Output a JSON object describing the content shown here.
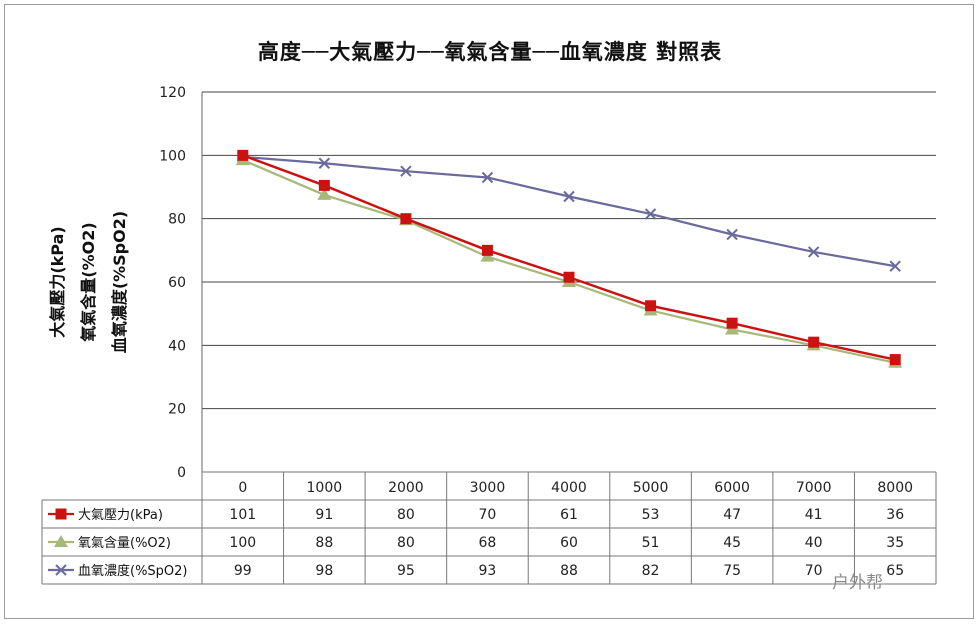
{
  "chart_data": {
    "type": "line",
    "title": "高度──大氣壓力──氧氣含量──血氧濃度 對照表",
    "ylabel_lines": [
      "大氣壓力(kPa)",
      "氧氣含量(%O2)",
      "血氧濃度(%SpO2)"
    ],
    "xlabel": "",
    "ylim": [
      0,
      120
    ],
    "yticks": [
      0,
      20,
      40,
      60,
      80,
      100,
      120
    ],
    "x": [
      0,
      1000,
      2000,
      3000,
      4000,
      5000,
      6000,
      7000,
      8000
    ],
    "x_labels": [
      "0",
      "1000",
      "2000",
      "3000",
      "4000",
      "5000",
      "6000",
      "7000",
      "8000"
    ],
    "grid": true,
    "legend_placement": "table-left",
    "series": [
      {
        "name": "大氣壓力(kPa)",
        "values": [
          101,
          91,
          80,
          70,
          61,
          53,
          47,
          41,
          36
        ],
        "plotted": [
          100,
          90.5,
          80,
          70,
          61.5,
          52.5,
          47,
          41,
          35.5
        ],
        "color": "#cc1111",
        "marker": "square"
      },
      {
        "name": "氧氣含量(%O2)",
        "values": [
          100,
          88,
          80,
          68,
          60,
          51,
          45,
          40,
          35
        ],
        "plotted": [
          98.5,
          87.5,
          79.5,
          68,
          60,
          51,
          45,
          40,
          34.5
        ],
        "color": "#a8b87a",
        "marker": "triangle"
      },
      {
        "name": "血氧濃度(%SpO2)",
        "values": [
          99,
          98,
          95,
          93,
          88,
          82,
          75,
          70,
          65
        ],
        "plotted": [
          99.5,
          97.5,
          95,
          93,
          87,
          81.5,
          75,
          69.5,
          65
        ],
        "color": "#6a6a9c",
        "marker": "x"
      }
    ],
    "table_values": [
      [
        "101",
        "91",
        "80",
        "70",
        "61",
        "53",
        "47",
        "41",
        "36"
      ],
      [
        "100",
        "88",
        "80",
        "68",
        "60",
        "51",
        "45",
        "40",
        "35"
      ],
      [
        "99",
        "98",
        "95",
        "93",
        "88",
        "82",
        "75",
        "70",
        "65"
      ]
    ]
  },
  "watermark": "户外帮"
}
